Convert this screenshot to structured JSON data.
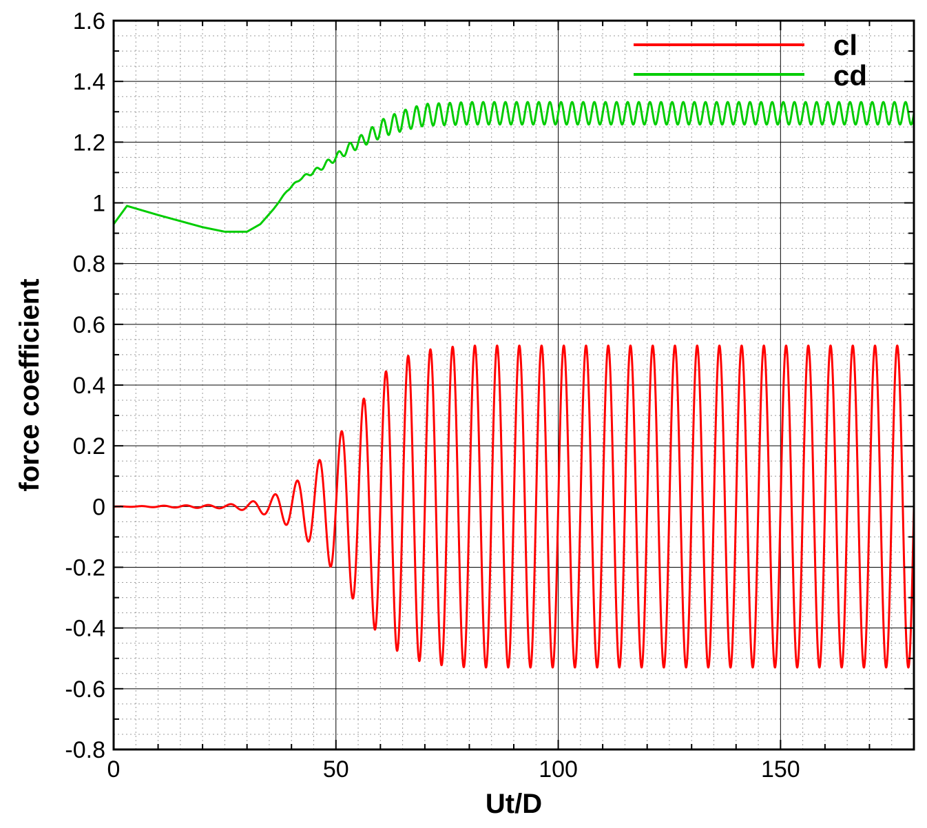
{
  "chart_data": {
    "type": "line",
    "xlabel": "Ut/D",
    "ylabel": "force coefficient",
    "xlim": [
      0,
      180
    ],
    "ylim": [
      -0.8,
      1.6
    ],
    "x_ticks": [
      0,
      50,
      100,
      150
    ],
    "y_ticks": [
      -0.8,
      -0.6,
      -0.4,
      -0.2,
      0,
      0.2,
      0.4,
      0.6,
      0.8,
      1,
      1.2,
      1.4,
      1.6
    ],
    "y_tick_labels": [
      "-0.8",
      "-0.6",
      "-0.4",
      "-0.2",
      "0",
      "0.2",
      "0.4",
      "0.6",
      "0.8",
      "1",
      "1.2",
      "1.4",
      "1.6"
    ],
    "grid": true,
    "legend_position": "top-right",
    "series": [
      {
        "name": "cl",
        "color": "#ff0000",
        "x": [
          0,
          25,
          30,
          35,
          40,
          45,
          50,
          55,
          60,
          65,
          70,
          75,
          80,
          90,
          100,
          120,
          140,
          160,
          180
        ],
        "amplitude": [
          0,
          0.006,
          0.013,
          0.03,
          0.07,
          0.13,
          0.22,
          0.33,
          0.43,
          0.49,
          0.515,
          0.525,
          0.53,
          0.53,
          0.53,
          0.53,
          0.53,
          0.53,
          0.53
        ],
        "period": 5.0,
        "mean": 0.0
      },
      {
        "name": "cd",
        "color": "#00cc00",
        "x": [
          0,
          3,
          10,
          20,
          25,
          30,
          33,
          36,
          39,
          42,
          46,
          50,
          53,
          57,
          61,
          66,
          70,
          80,
          100,
          180
        ],
        "mean": [
          0.93,
          0.99,
          0.96,
          0.92,
          0.905,
          0.905,
          0.93,
          0.98,
          1.04,
          1.08,
          1.11,
          1.15,
          1.18,
          1.215,
          1.25,
          1.275,
          1.29,
          1.295,
          1.295,
          1.295
        ],
        "amplitude": [
          0,
          0,
          0,
          0,
          0,
          0,
          0,
          0,
          0.002,
          0.004,
          0.008,
          0.012,
          0.016,
          0.022,
          0.03,
          0.034,
          0.036,
          0.037,
          0.037,
          0.037
        ],
        "period": 2.5
      }
    ]
  }
}
